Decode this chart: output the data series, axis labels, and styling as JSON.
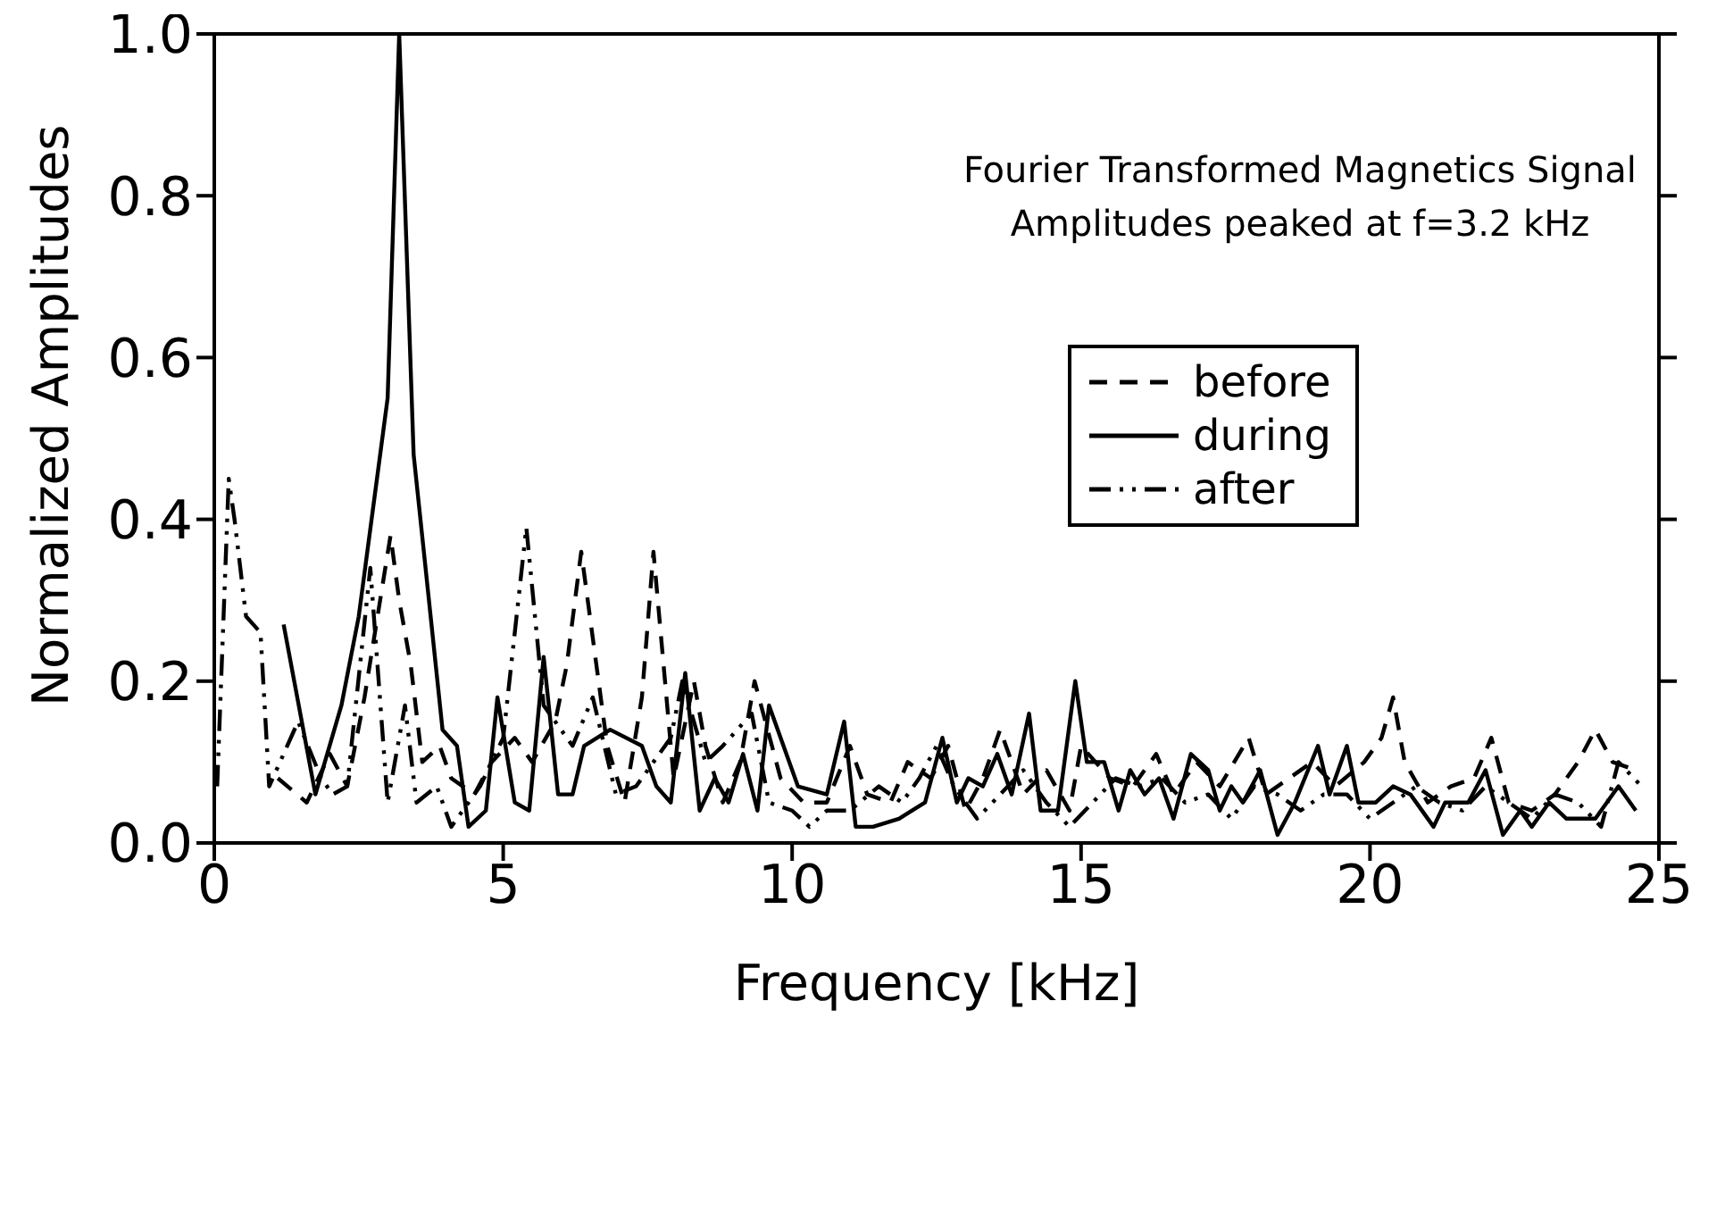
{
  "chart_data": {
    "type": "line",
    "xlabel": "Frequency [kHz]",
    "ylabel": "Normalized Amplitudes",
    "annotations": [
      "Fourier Transformed Magnetics Signal",
      "Amplitudes peaked at f=3.2 kHz"
    ],
    "xlim": [
      0,
      25
    ],
    "xticks": [
      0,
      5,
      10,
      15,
      20,
      25
    ],
    "ylim": [
      0,
      1
    ],
    "yticks": [
      {
        "value": 0,
        "label": "0.0"
      },
      {
        "value": 0.2,
        "label": "0.2"
      },
      {
        "value": 0.4,
        "label": "0.4"
      },
      {
        "value": 0.6,
        "label": "0.6"
      },
      {
        "value": 0.8,
        "label": "0.8"
      },
      {
        "value": 1,
        "label": "1.0"
      }
    ],
    "grid": false,
    "legend": "top right",
    "marker": "none",
    "series": [
      {
        "name": "before",
        "color": "#000000",
        "line_style": "dashed",
        "x": [
          1.1,
          1.6,
          2.0,
          2.3,
          2.6,
          3.05,
          3.2,
          3.4,
          3.6,
          3.9,
          4.1,
          4.5,
          4.8,
          5.2,
          5.5,
          5.9,
          6.1,
          6.35,
          6.8,
          7.1,
          7.4,
          7.6,
          7.95,
          8.3,
          8.5,
          8.8,
          9.1,
          9.35,
          9.8,
          10.2,
          10.6,
          11.0,
          11.3,
          11.7,
          12.0,
          12.4,
          12.7,
          13.0,
          13.3,
          13.6,
          14.0,
          14.4,
          14.8,
          15.0,
          15.5,
          15.9,
          16.3,
          16.6,
          17.0,
          17.4,
          17.9,
          18.2,
          18.6,
          19.0,
          19.4,
          19.9,
          20.2,
          20.4,
          20.6,
          21.0,
          21.4,
          21.8,
          22.1,
          22.4,
          22.8,
          23.2,
          23.6,
          23.9,
          24.2,
          24.6
        ],
        "values": [
          0.08,
          0.05,
          0.11,
          0.07,
          0.18,
          0.38,
          0.3,
          0.22,
          0.1,
          0.12,
          0.08,
          0.06,
          0.1,
          0.13,
          0.1,
          0.15,
          0.22,
          0.36,
          0.12,
          0.05,
          0.18,
          0.36,
          0.08,
          0.2,
          0.12,
          0.05,
          0.1,
          0.2,
          0.08,
          0.05,
          0.05,
          0.12,
          0.06,
          0.05,
          0.1,
          0.08,
          0.12,
          0.04,
          0.08,
          0.14,
          0.06,
          0.09,
          0.04,
          0.12,
          0.08,
          0.07,
          0.11,
          0.06,
          0.1,
          0.07,
          0.13,
          0.06,
          0.08,
          0.1,
          0.07,
          0.1,
          0.13,
          0.18,
          0.1,
          0.05,
          0.07,
          0.08,
          0.13,
          0.05,
          0.04,
          0.06,
          0.1,
          0.14,
          0.1,
          0.09
        ]
      },
      {
        "name": "during",
        "color": "#000000",
        "line_style": "solid",
        "x": [
          1.2,
          1.75,
          2.2,
          2.5,
          3.0,
          3.2,
          3.45,
          3.95,
          4.2,
          4.4,
          4.7,
          4.9,
          5.2,
          5.45,
          5.7,
          5.95,
          6.2,
          6.4,
          6.85,
          7.4,
          7.65,
          7.9,
          8.15,
          8.4,
          8.66,
          8.9,
          9.15,
          9.4,
          9.6,
          10.1,
          10.6,
          10.9,
          11.1,
          11.4,
          11.85,
          12.3,
          12.6,
          12.85,
          13.05,
          13.3,
          13.55,
          13.8,
          14.1,
          14.3,
          14.6,
          14.9,
          15.1,
          15.4,
          15.65,
          15.85,
          16.1,
          16.35,
          16.6,
          16.9,
          17.2,
          17.4,
          17.6,
          17.8,
          18.1,
          18.4,
          18.7,
          19.1,
          19.3,
          19.6,
          19.8,
          20.1,
          20.4,
          20.7,
          21.1,
          21.3,
          21.7,
          22.0,
          22.3,
          22.6,
          22.8,
          23.1,
          23.4,
          23.9,
          24.3,
          24.6
        ],
        "values": [
          0.27,
          0.06,
          0.17,
          0.28,
          0.55,
          1.0,
          0.48,
          0.14,
          0.12,
          0.02,
          0.04,
          0.18,
          0.05,
          0.04,
          0.23,
          0.06,
          0.06,
          0.12,
          0.14,
          0.12,
          0.07,
          0.05,
          0.21,
          0.04,
          0.08,
          0.05,
          0.11,
          0.04,
          0.17,
          0.07,
          0.06,
          0.15,
          0.02,
          0.02,
          0.03,
          0.05,
          0.13,
          0.05,
          0.08,
          0.07,
          0.11,
          0.06,
          0.16,
          0.04,
          0.04,
          0.2,
          0.1,
          0.1,
          0.04,
          0.09,
          0.06,
          0.08,
          0.03,
          0.11,
          0.09,
          0.04,
          0.07,
          0.05,
          0.09,
          0.01,
          0.05,
          0.12,
          0.06,
          0.12,
          0.05,
          0.05,
          0.07,
          0.06,
          0.02,
          0.05,
          0.05,
          0.09,
          0.01,
          0.04,
          0.02,
          0.05,
          0.03,
          0.03,
          0.07,
          0.04
        ]
      },
      {
        "name": "after",
        "color": "#000000",
        "line_style": "dotted",
        "x": [
          0.05,
          0.25,
          0.35,
          0.55,
          0.8,
          0.95,
          1.45,
          1.85,
          2.05,
          2.3,
          2.7,
          3.0,
          3.3,
          3.5,
          3.85,
          4.1,
          4.6,
          5.0,
          5.4,
          5.7,
          6.2,
          6.55,
          6.95,
          7.3,
          7.9,
          8.1,
          8.5,
          8.8,
          9.3,
          9.6,
          10.0,
          10.3,
          10.6,
          11.0,
          11.5,
          11.9,
          12.2,
          12.5,
          12.8,
          13.2,
          13.6,
          14.0,
          14.4,
          14.8,
          15.2,
          15.6,
          16.0,
          16.4,
          16.8,
          17.2,
          17.6,
          18.0,
          18.4,
          18.8,
          19.2,
          19.6,
          20.0,
          20.4,
          20.8,
          21.2,
          21.6,
          22.0,
          22.4,
          22.8,
          23.2,
          23.6,
          24.0,
          24.3,
          24.7
        ],
        "values": [
          0.07,
          0.45,
          0.4,
          0.28,
          0.26,
          0.07,
          0.15,
          0.08,
          0.06,
          0.07,
          0.34,
          0.05,
          0.17,
          0.05,
          0.07,
          0.02,
          0.07,
          0.13,
          0.39,
          0.17,
          0.12,
          0.18,
          0.06,
          0.07,
          0.13,
          0.2,
          0.1,
          0.12,
          0.16,
          0.05,
          0.04,
          0.02,
          0.04,
          0.04,
          0.07,
          0.05,
          0.08,
          0.12,
          0.07,
          0.03,
          0.06,
          0.09,
          0.05,
          0.02,
          0.05,
          0.08,
          0.07,
          0.08,
          0.05,
          0.06,
          0.03,
          0.07,
          0.06,
          0.04,
          0.06,
          0.06,
          0.03,
          0.05,
          0.07,
          0.05,
          0.04,
          0.07,
          0.05,
          0.03,
          0.06,
          0.05,
          0.02,
          0.1,
          0.07
        ]
      }
    ]
  }
}
